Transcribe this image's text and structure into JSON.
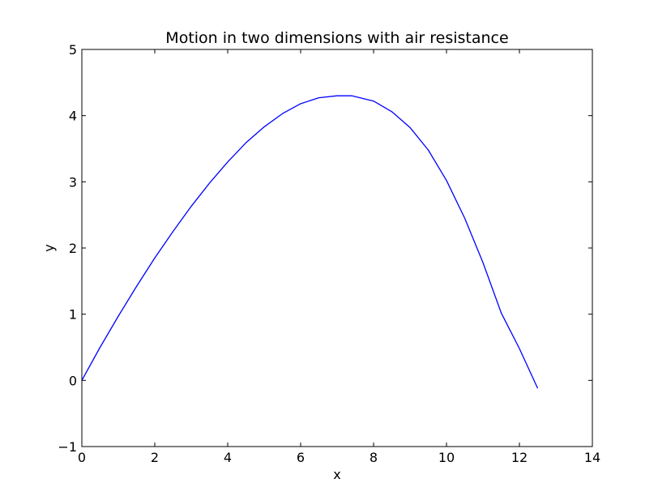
{
  "chart_data": {
    "type": "line",
    "title": "Motion in two dimensions with air resistance",
    "xlabel": "x",
    "ylabel": "y",
    "xlim": [
      0,
      14
    ],
    "ylim": [
      -1,
      5
    ],
    "xticks": [
      0,
      2,
      4,
      6,
      8,
      10,
      12,
      14
    ],
    "yticks": [
      -1,
      0,
      1,
      2,
      3,
      4,
      5
    ],
    "xtick_labels": [
      "0",
      "2",
      "4",
      "6",
      "8",
      "10",
      "12",
      "14"
    ],
    "ytick_labels": [
      "−1",
      "0",
      "1",
      "2",
      "3",
      "4",
      "5"
    ],
    "grid": false,
    "series": [
      {
        "color": "#0000ff",
        "x": [
          0,
          0.5,
          1,
          1.5,
          2,
          2.5,
          3,
          3.5,
          4,
          4.5,
          5,
          5.5,
          6,
          6.5,
          7,
          7.4,
          8,
          8.5,
          9,
          9.5,
          10,
          10.5,
          11,
          11.5,
          12,
          12.5
        ],
        "y": [
          0,
          0.5,
          0.97,
          1.42,
          1.85,
          2.25,
          2.63,
          2.98,
          3.3,
          3.59,
          3.83,
          4.03,
          4.18,
          4.27,
          4.3,
          4.3,
          4.22,
          4.06,
          3.82,
          3.48,
          3.02,
          2.45,
          1.78,
          1.02,
          0.48,
          -0.12
        ]
      }
    ]
  }
}
